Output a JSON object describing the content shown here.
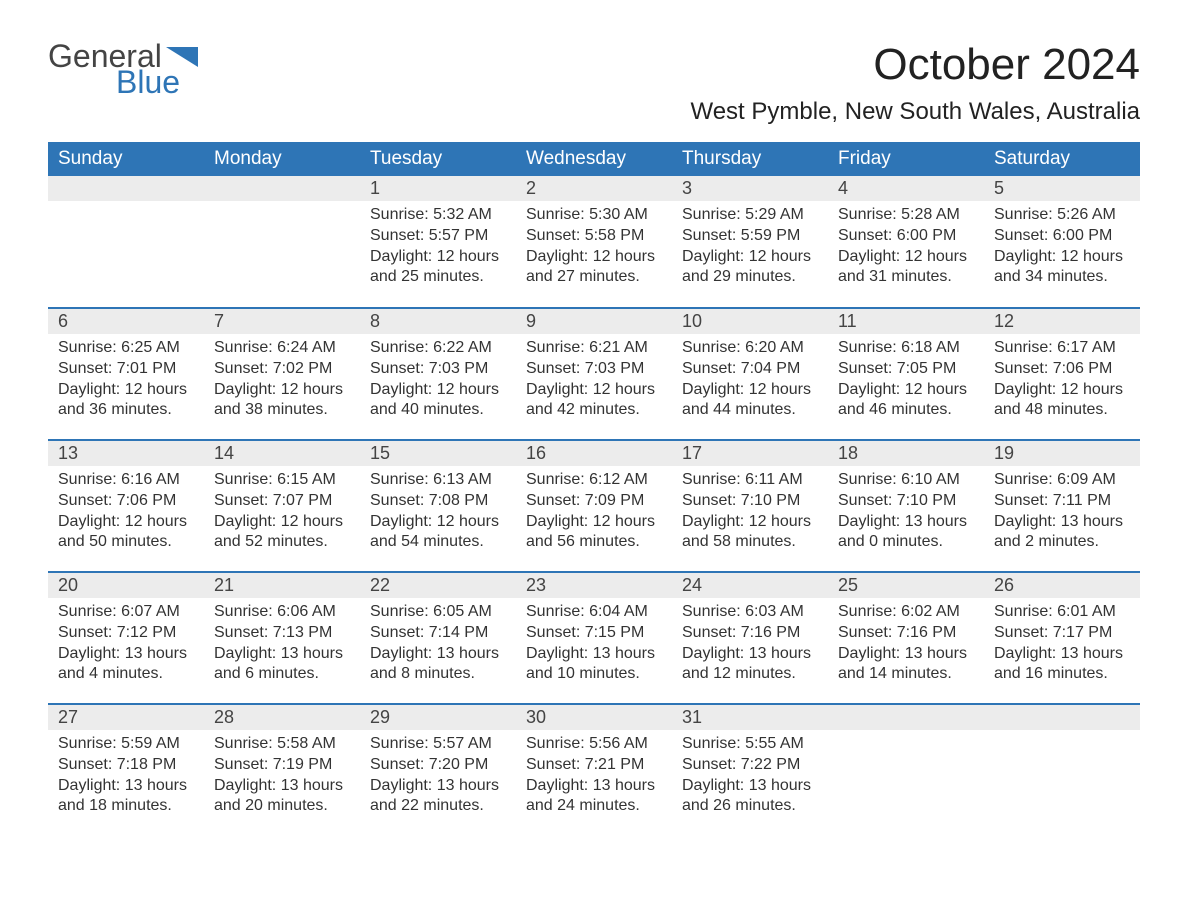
{
  "brand": {
    "word1": "General",
    "word2": "Blue"
  },
  "title": "October 2024",
  "location": "West Pymble, New South Wales, Australia",
  "colors": {
    "header_bg": "#2e75b6",
    "header_text": "#ffffff",
    "daynum_bg": "#ececec",
    "row_border": "#2e75b6",
    "brand_blue": "#2e75b6",
    "brand_gray": "#444444",
    "body_text": "#333333",
    "page_bg": "#ffffff"
  },
  "weekdays": [
    "Sunday",
    "Monday",
    "Tuesday",
    "Wednesday",
    "Thursday",
    "Friday",
    "Saturday"
  ],
  "weeks": [
    [
      null,
      null,
      {
        "n": "1",
        "sunrise": "5:32 AM",
        "sunset": "5:57 PM",
        "daylight": "12 hours and 25 minutes."
      },
      {
        "n": "2",
        "sunrise": "5:30 AM",
        "sunset": "5:58 PM",
        "daylight": "12 hours and 27 minutes."
      },
      {
        "n": "3",
        "sunrise": "5:29 AM",
        "sunset": "5:59 PM",
        "daylight": "12 hours and 29 minutes."
      },
      {
        "n": "4",
        "sunrise": "5:28 AM",
        "sunset": "6:00 PM",
        "daylight": "12 hours and 31 minutes."
      },
      {
        "n": "5",
        "sunrise": "5:26 AM",
        "sunset": "6:00 PM",
        "daylight": "12 hours and 34 minutes."
      }
    ],
    [
      {
        "n": "6",
        "sunrise": "6:25 AM",
        "sunset": "7:01 PM",
        "daylight": "12 hours and 36 minutes."
      },
      {
        "n": "7",
        "sunrise": "6:24 AM",
        "sunset": "7:02 PM",
        "daylight": "12 hours and 38 minutes."
      },
      {
        "n": "8",
        "sunrise": "6:22 AM",
        "sunset": "7:03 PM",
        "daylight": "12 hours and 40 minutes."
      },
      {
        "n": "9",
        "sunrise": "6:21 AM",
        "sunset": "7:03 PM",
        "daylight": "12 hours and 42 minutes."
      },
      {
        "n": "10",
        "sunrise": "6:20 AM",
        "sunset": "7:04 PM",
        "daylight": "12 hours and 44 minutes."
      },
      {
        "n": "11",
        "sunrise": "6:18 AM",
        "sunset": "7:05 PM",
        "daylight": "12 hours and 46 minutes."
      },
      {
        "n": "12",
        "sunrise": "6:17 AM",
        "sunset": "7:06 PM",
        "daylight": "12 hours and 48 minutes."
      }
    ],
    [
      {
        "n": "13",
        "sunrise": "6:16 AM",
        "sunset": "7:06 PM",
        "daylight": "12 hours and 50 minutes."
      },
      {
        "n": "14",
        "sunrise": "6:15 AM",
        "sunset": "7:07 PM",
        "daylight": "12 hours and 52 minutes."
      },
      {
        "n": "15",
        "sunrise": "6:13 AM",
        "sunset": "7:08 PM",
        "daylight": "12 hours and 54 minutes."
      },
      {
        "n": "16",
        "sunrise": "6:12 AM",
        "sunset": "7:09 PM",
        "daylight": "12 hours and 56 minutes."
      },
      {
        "n": "17",
        "sunrise": "6:11 AM",
        "sunset": "7:10 PM",
        "daylight": "12 hours and 58 minutes."
      },
      {
        "n": "18",
        "sunrise": "6:10 AM",
        "sunset": "7:10 PM",
        "daylight": "13 hours and 0 minutes."
      },
      {
        "n": "19",
        "sunrise": "6:09 AM",
        "sunset": "7:11 PM",
        "daylight": "13 hours and 2 minutes."
      }
    ],
    [
      {
        "n": "20",
        "sunrise": "6:07 AM",
        "sunset": "7:12 PM",
        "daylight": "13 hours and 4 minutes."
      },
      {
        "n": "21",
        "sunrise": "6:06 AM",
        "sunset": "7:13 PM",
        "daylight": "13 hours and 6 minutes."
      },
      {
        "n": "22",
        "sunrise": "6:05 AM",
        "sunset": "7:14 PM",
        "daylight": "13 hours and 8 minutes."
      },
      {
        "n": "23",
        "sunrise": "6:04 AM",
        "sunset": "7:15 PM",
        "daylight": "13 hours and 10 minutes."
      },
      {
        "n": "24",
        "sunrise": "6:03 AM",
        "sunset": "7:16 PM",
        "daylight": "13 hours and 12 minutes."
      },
      {
        "n": "25",
        "sunrise": "6:02 AM",
        "sunset": "7:16 PM",
        "daylight": "13 hours and 14 minutes."
      },
      {
        "n": "26",
        "sunrise": "6:01 AM",
        "sunset": "7:17 PM",
        "daylight": "13 hours and 16 minutes."
      }
    ],
    [
      {
        "n": "27",
        "sunrise": "5:59 AM",
        "sunset": "7:18 PM",
        "daylight": "13 hours and 18 minutes."
      },
      {
        "n": "28",
        "sunrise": "5:58 AM",
        "sunset": "7:19 PM",
        "daylight": "13 hours and 20 minutes."
      },
      {
        "n": "29",
        "sunrise": "5:57 AM",
        "sunset": "7:20 PM",
        "daylight": "13 hours and 22 minutes."
      },
      {
        "n": "30",
        "sunrise": "5:56 AM",
        "sunset": "7:21 PM",
        "daylight": "13 hours and 24 minutes."
      },
      {
        "n": "31",
        "sunrise": "5:55 AM",
        "sunset": "7:22 PM",
        "daylight": "13 hours and 26 minutes."
      },
      null,
      null
    ]
  ],
  "labels": {
    "sunrise": "Sunrise:",
    "sunset": "Sunset:",
    "daylight": "Daylight:"
  }
}
